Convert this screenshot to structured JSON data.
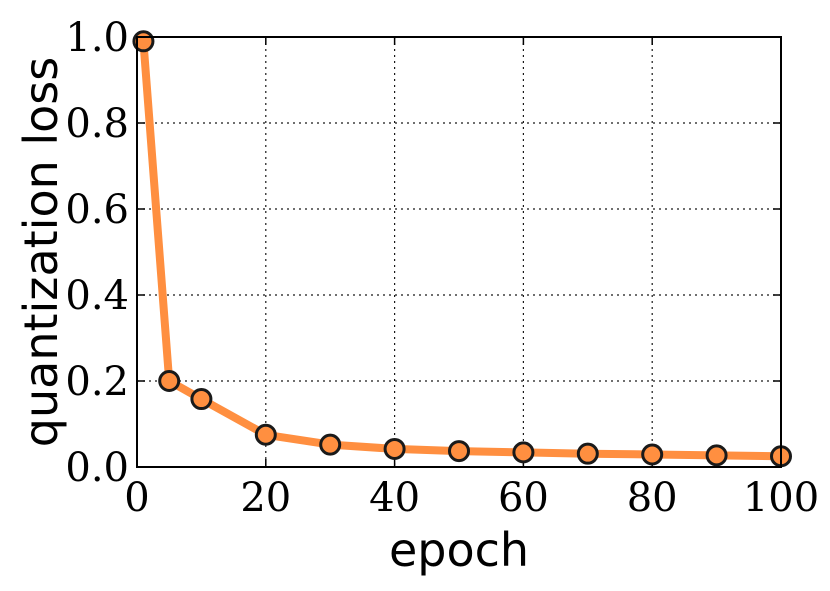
{
  "chart_data": {
    "type": "line",
    "title": "",
    "xlabel": "epoch",
    "ylabel": "quantization loss",
    "xlim": [
      0,
      100
    ],
    "ylim": [
      0.0,
      1.0
    ],
    "xticks": [
      0,
      20,
      40,
      60,
      80,
      100
    ],
    "xtick_labels": [
      "0",
      "20",
      "40",
      "60",
      "80",
      "100"
    ],
    "yticks": [
      0.0,
      0.2,
      0.4,
      0.6,
      0.8,
      1.0
    ],
    "ytick_labels": [
      "0.0",
      "0.2",
      "0.4",
      "0.6",
      "0.8",
      "1.0"
    ],
    "grid": true,
    "series": [
      {
        "x": [
          1,
          5,
          10,
          20,
          30,
          40,
          50,
          60,
          70,
          80,
          90,
          100
        ],
        "y": [
          0.99,
          0.2,
          0.158,
          0.075,
          0.052,
          0.042,
          0.037,
          0.034,
          0.031,
          0.029,
          0.027,
          0.025
        ],
        "color": "#ff8f40",
        "marker": "circle",
        "marker_edge_color": "#1a1a1a"
      }
    ]
  }
}
